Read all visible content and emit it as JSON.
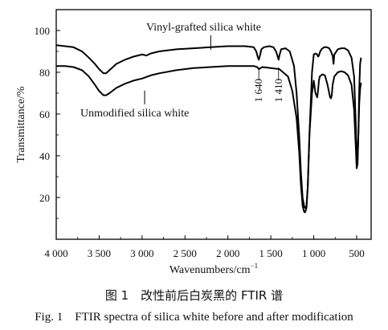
{
  "chart_data": {
    "type": "line",
    "xlabel": "Wavenumbers/cm",
    "xlabel_sup": "−1",
    "ylabel": "Transmittance/%",
    "xlim": [
      4000,
      450
    ],
    "ylim": [
      0,
      110
    ],
    "x_reversed": true,
    "x_ticks": [
      4000,
      3500,
      3000,
      2500,
      2000,
      1500,
      1000,
      500
    ],
    "x_tick_labels": [
      "4 000",
      "3 500",
      "3 000",
      "2 500",
      "2 000",
      "1 500",
      "1 000",
      "500"
    ],
    "y_ticks": [
      20,
      40,
      60,
      80,
      100
    ],
    "y_tick_labels": [
      "20",
      "40",
      "60",
      "80",
      "100"
    ],
    "grid": false,
    "series": [
      {
        "name": "Vinyl-grafted silica white",
        "color": "#000000",
        "x": [
          4000,
          3900,
          3800,
          3700,
          3620,
          3550,
          3500,
          3450,
          3420,
          3380,
          3300,
          3200,
          3100,
          3000,
          2950,
          2900,
          2800,
          2600,
          2400,
          2200,
          2000,
          1800,
          1700,
          1670,
          1650,
          1640,
          1630,
          1610,
          1580,
          1520,
          1470,
          1440,
          1420,
          1410,
          1400,
          1380,
          1330,
          1280,
          1230,
          1200,
          1170,
          1150,
          1130,
          1110,
          1100,
          1085,
          1070,
          1050,
          1020,
          1000,
          980,
          960,
          950,
          940,
          930,
          910,
          880,
          850,
          820,
          800,
          780,
          770,
          760,
          720,
          680,
          640,
          600,
          560,
          530,
          510,
          500,
          490,
          480,
          470,
          460,
          450
        ],
        "y": [
          93,
          92.5,
          92,
          90,
          87,
          84,
          81.5,
          79.5,
          79.5,
          81,
          84,
          86,
          87.5,
          88.5,
          88,
          89,
          90,
          91,
          91.5,
          92,
          92.5,
          92.5,
          92,
          90,
          87,
          86,
          87.5,
          91,
          92,
          92.5,
          92,
          90,
          87.5,
          86,
          88,
          91,
          91.5,
          90,
          83,
          70,
          50,
          32,
          20,
          15.5,
          15,
          16,
          25,
          50,
          80,
          88.5,
          89,
          88.5,
          87.5,
          88,
          89.5,
          91,
          92,
          92,
          91.5,
          90,
          88,
          84,
          88.5,
          91,
          91.5,
          91.5,
          90.5,
          87,
          78,
          55,
          40,
          38,
          50,
          72,
          84,
          87
        ]
      },
      {
        "name": "Unmodified silica white",
        "color": "#000000",
        "x": [
          4000,
          3900,
          3800,
          3700,
          3620,
          3550,
          3500,
          3450,
          3420,
          3380,
          3300,
          3200,
          3100,
          3000,
          2900,
          2800,
          2600,
          2400,
          2200,
          2000,
          1800,
          1700,
          1660,
          1640,
          1620,
          1600,
          1500,
          1400,
          1300,
          1250,
          1200,
          1170,
          1150,
          1130,
          1110,
          1100,
          1085,
          1070,
          1050,
          1020,
          1000,
          980,
          960,
          950,
          940,
          930,
          900,
          870,
          840,
          810,
          800,
          790,
          780,
          760,
          720,
          680,
          640,
          600,
          560,
          530,
          510,
          500,
          490,
          480,
          470,
          460,
          450
        ],
        "y": [
          83,
          83,
          82.5,
          81,
          78,
          74,
          71,
          69,
          69,
          70,
          72.5,
          74.5,
          76,
          77,
          78.5,
          79.5,
          81,
          82,
          82.5,
          83,
          83,
          83,
          82.5,
          81.5,
          82,
          82.5,
          82,
          81.5,
          78,
          71,
          58,
          42,
          26,
          16,
          13,
          13,
          15,
          25,
          50,
          70,
          76,
          70,
          68,
          71,
          76,
          78,
          79,
          78.5,
          74,
          68,
          67.5,
          69,
          74,
          78,
          80,
          80.5,
          80,
          78.5,
          74,
          62,
          44,
          34,
          36,
          50,
          65,
          72,
          75
        ]
      }
    ],
    "annotations": [
      {
        "text": "Vinyl-grafted silica white",
        "leader_from": [
          2200,
          95
        ],
        "leader_to": [
          2200,
          90
        ]
      },
      {
        "text": "Unmodified silica white",
        "leader_from": [
          2970,
          77
        ],
        "leader_to": [
          2970,
          72
        ]
      },
      {
        "text": "1 640",
        "x": 1640
      },
      {
        "text": "1 410",
        "x": 1410
      }
    ]
  },
  "caption": {
    "chinese": "图 1　改性前后白炭黑的 FTIR 谱",
    "english": "Fig. 1　FTIR spectra of silica white before and after modification"
  }
}
